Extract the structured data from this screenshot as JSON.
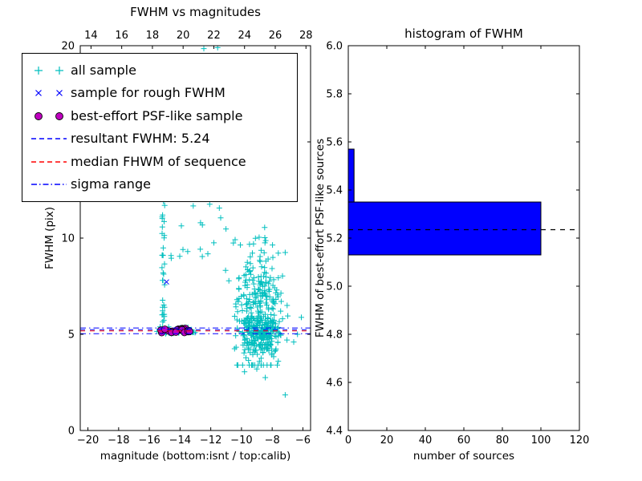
{
  "figure": {
    "background": "#ffffff"
  },
  "chart_data": [
    {
      "type": "scatter",
      "title": "FWHM vs magnitudes",
      "xlabel": "magnitude (bottom:isnt / top:calib)",
      "ylabel": "FWHM (pix)",
      "xlim": [
        -20.5,
        -5.5
      ],
      "xlim_top": [
        13.3,
        28.3
      ],
      "ylim": [
        0,
        20
      ],
      "xticks_bottom": [
        -20,
        -18,
        -16,
        -14,
        -12,
        -10,
        -8,
        -6
      ],
      "xtick_labels_bottom": [
        "−20",
        "−18",
        "−16",
        "−14",
        "−12",
        "−10",
        "−8",
        "−6"
      ],
      "xticks_top": [
        14,
        16,
        18,
        20,
        22,
        24,
        26,
        28
      ],
      "xtick_labels_top": [
        "14",
        "16",
        "18",
        "20",
        "22",
        "24",
        "26",
        "28"
      ],
      "yticks": [
        0,
        5,
        10,
        15,
        20
      ],
      "ytick_labels": [
        "0",
        "5",
        "10",
        "15",
        "20"
      ],
      "series": [
        {
          "name": "all sample",
          "marker": "plus",
          "color": "#00bfbf",
          "clusters": [
            {
              "dist": "gauss",
              "n": 320,
              "cx": -8.95,
              "sx": 0.75,
              "cy": 6.3,
              "sy": 1.7,
              "clampx": [
                -11.3,
                -6.1
              ],
              "clampy": [
                3.4,
                14.8
              ]
            },
            {
              "dist": "gauss",
              "n": 140,
              "cx": -8.7,
              "sx": 0.55,
              "cy": 5.1,
              "sy": 0.45,
              "clampx": [
                -11.0,
                -6.2
              ],
              "clampy": [
                4.2,
                6.5
              ]
            },
            {
              "dist": "uniform",
              "n": 38,
              "xmin": -15.18,
              "xmax": -15.0,
              "ymin": 4.85,
              "ymax": 12.6
            },
            {
              "dist": "uniform",
              "n": 26,
              "xmin": -14.7,
              "xmax": -10.9,
              "ymin": 8.8,
              "ymax": 13.4
            },
            {
              "dist": "uniform",
              "n": 30,
              "xmin": -15.45,
              "xmax": -12.9,
              "ymin": 5.0,
              "ymax": 5.4
            },
            {
              "dist": "gauss",
              "n": 22,
              "cx": -9.4,
              "sx": 0.45,
              "cy": 15.3,
              "sy": 1.9,
              "clampx": [
                -10.6,
                -8.2
              ],
              "clampy": [
                13.0,
                19.9
              ]
            }
          ],
          "points": [
            [
              -12.45,
              19.85
            ],
            [
              -11.55,
              19.9
            ],
            [
              -12.2,
              16.15
            ],
            [
              -7.15,
              1.85
            ],
            [
              -8.45,
              2.75
            ],
            [
              -9.0,
              3.2
            ],
            [
              -9.8,
              3.05
            ],
            [
              -10.45,
              4.25
            ],
            [
              -7.6,
              3.6
            ],
            [
              -6.6,
              4.6
            ],
            [
              -6.35,
              5.0
            ],
            [
              -13.5,
              9.3
            ],
            [
              -13.05,
              12.85
            ],
            [
              -15.5,
              5.15
            ],
            [
              -10.9,
              14.9
            ]
          ]
        },
        {
          "name": "sample for rough FWHM",
          "marker": "x",
          "color": "#0000ff",
          "points": [
            [
              -14.88,
              7.72
            ]
          ]
        },
        {
          "name": "best-effort PSF-like sample",
          "marker": "circle",
          "color": "#bf00bf",
          "edge": "#000000",
          "clusters": [
            {
              "dist": "uniform",
              "n": 22,
              "xmin": -15.28,
              "xmax": -13.35,
              "ymin": 5.08,
              "ymax": 5.32
            }
          ]
        }
      ],
      "hlines": [
        {
          "name": "resultant FWHM",
          "y": 5.24,
          "color": "#0000ff",
          "style": "dashed"
        },
        {
          "name": "median FHWM of sequence",
          "y": 5.18,
          "color": "#ff0000",
          "style": "dashed"
        },
        {
          "name": "sigma range upper",
          "y": 5.33,
          "color": "#0000ff",
          "style": "dashdot"
        },
        {
          "name": "sigma range lower",
          "y": 5.03,
          "color": "#0000ff",
          "style": "dashdot"
        }
      ],
      "legend": {
        "items": [
          {
            "label": "all sample",
            "marker": "plus",
            "color": "#00bfbf"
          },
          {
            "label": "sample for rough FWHM",
            "marker": "x",
            "color": "#0000ff"
          },
          {
            "label": "best-effort PSF-like sample",
            "marker": "circle",
            "color": "#bf00bf"
          },
          {
            "label": "resultant FWHM: 5.24",
            "marker": "dashed-line",
            "color": "#0000ff"
          },
          {
            "label": "median FHWM of sequence",
            "marker": "dashed-line",
            "color": "#ff0000"
          },
          {
            "label": "sigma range",
            "marker": "dashdot-line",
            "color": "#0000ff"
          }
        ]
      }
    },
    {
      "type": "barh-histogram",
      "title": "histogram of FWHM",
      "xlabel": "number of sources",
      "ylabel": "FWHM of best-effort PSF-like sources",
      "xlim": [
        0,
        120
      ],
      "ylim": [
        4.4,
        6.0
      ],
      "xticks": [
        0,
        20,
        40,
        60,
        80,
        100,
        120
      ],
      "xtick_labels": [
        "0",
        "20",
        "40",
        "60",
        "80",
        "100",
        "120"
      ],
      "yticks": [
        4.4,
        4.6,
        4.8,
        5.0,
        5.2,
        5.4,
        5.6,
        5.8,
        6.0
      ],
      "ytick_labels": [
        "4.4",
        "4.6",
        "4.8",
        "5.0",
        "5.2",
        "5.4",
        "5.6",
        "5.8",
        "6.0"
      ],
      "bars": [
        {
          "y0": 5.13,
          "y1": 5.35,
          "count": 100
        },
        {
          "y0": 5.35,
          "y1": 5.57,
          "count": 3
        }
      ],
      "bar_color": "#0000ff",
      "bar_edge": "#000000",
      "dashed_line": {
        "y": 5.235,
        "color": "#000000"
      }
    }
  ]
}
